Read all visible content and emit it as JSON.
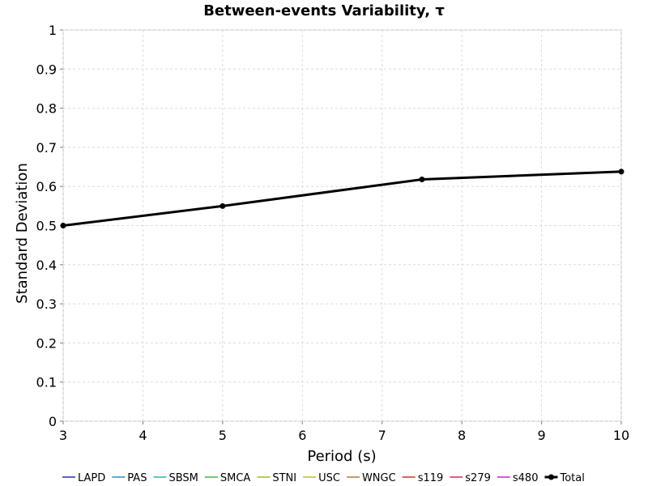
{
  "chart_data": {
    "type": "line",
    "title": "Between-events Variability, τ",
    "xlabel": "Period (s)",
    "ylabel": "Standard Deviation",
    "xlim": [
      3,
      10
    ],
    "ylim": [
      0,
      1
    ],
    "xticks": [
      "3",
      "4",
      "5",
      "6",
      "7",
      "8",
      "9",
      "10"
    ],
    "yticks": [
      "0",
      "0.1",
      "0.2",
      "0.3",
      "0.4",
      "0.5",
      "0.6",
      "0.7",
      "0.8",
      "0.9",
      "1"
    ],
    "grid": true,
    "legend_position": "bottom",
    "series": [
      {
        "name": "LAPD",
        "color": "#2a2ab8",
        "x": [],
        "y": []
      },
      {
        "name": "PAS",
        "color": "#2a8fb8",
        "x": [],
        "y": []
      },
      {
        "name": "SBSM",
        "color": "#2ab8a8",
        "x": [],
        "y": []
      },
      {
        "name": "SMCA",
        "color": "#3cb83c",
        "x": [],
        "y": []
      },
      {
        "name": "STNI",
        "color": "#9fbf2a",
        "x": [],
        "y": []
      },
      {
        "name": "USC",
        "color": "#c8b82a",
        "x": [],
        "y": []
      },
      {
        "name": "WNGC",
        "color": "#b8782a",
        "x": [],
        "y": []
      },
      {
        "name": "s119",
        "color": "#c83c2a",
        "x": [],
        "y": []
      },
      {
        "name": "s279",
        "color": "#d8285a",
        "x": [],
        "y": []
      },
      {
        "name": "s480",
        "color": "#c02ac8",
        "x": [],
        "y": []
      },
      {
        "name": "Total",
        "color": "#000000",
        "x": [
          3,
          5,
          7.5,
          10
        ],
        "y": [
          0.5,
          0.55,
          0.618,
          0.638
        ]
      }
    ]
  }
}
